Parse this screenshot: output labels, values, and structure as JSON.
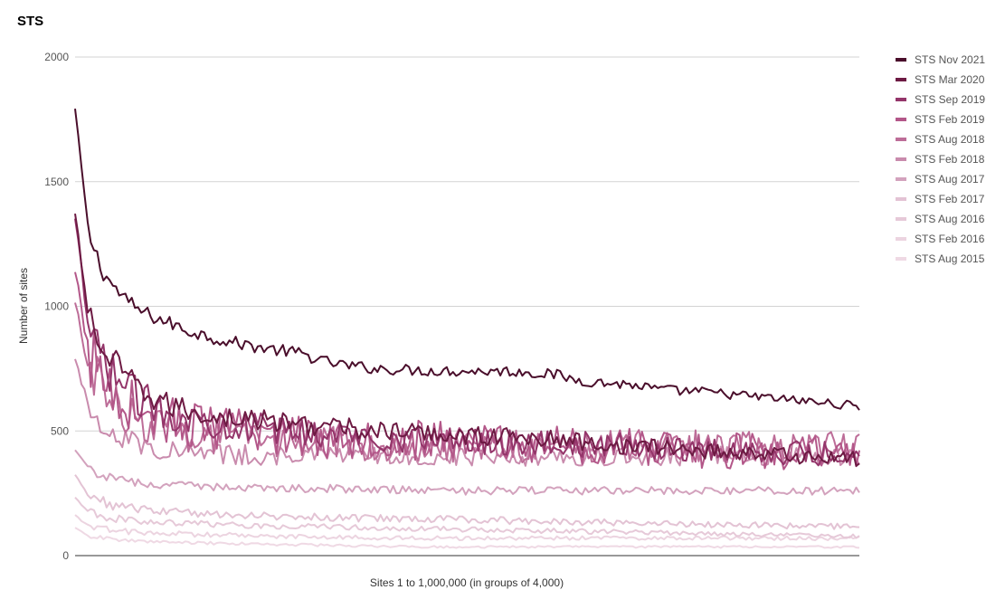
{
  "chart_data": {
    "type": "line",
    "title": "STS",
    "xlabel": "Sites 1 to 1,000,000 (in groups of 4,000)",
    "ylabel": "Number of sites",
    "ylim": [
      0,
      2000
    ],
    "yticks": [
      0,
      500,
      1000,
      1500,
      2000
    ],
    "x_points": 250,
    "legend_position": "right",
    "series": [
      {
        "name": "STS Nov 2021",
        "color": "#4a0e2b",
        "values": [
          1790,
          1290,
          1140,
          1065,
          1010,
          975,
          950,
          930,
          905,
          890,
          875,
          860,
          850,
          840,
          830,
          822,
          815,
          800,
          780,
          770,
          760,
          755,
          750,
          748,
          745,
          743,
          742,
          741,
          740,
          740,
          740,
          740,
          738,
          735,
          730,
          725,
          710,
          700,
          695,
          690,
          688,
          680,
          670,
          665,
          660,
          660,
          655,
          650,
          645,
          640,
          635,
          630,
          625,
          620,
          615,
          610,
          605,
          600
        ]
      },
      {
        "name": "STS Mar 2020",
        "color": "#6d1a43",
        "values": [
          1365,
          950,
          820,
          760,
          700,
          650,
          620,
          600,
          585,
          570,
          560,
          555,
          550,
          545,
          540,
          535,
          530,
          525,
          520,
          515,
          510,
          505,
          500,
          497,
          495,
          493,
          490,
          488,
          485,
          482,
          480,
          478,
          475,
          472,
          470,
          465,
          460,
          455,
          450,
          445,
          440,
          437,
          435,
          432,
          430,
          425,
          420,
          418,
          415,
          412,
          410,
          405,
          400,
          398,
          395,
          392,
          390,
          385
        ]
      },
      {
        "name": "STS Sep 2019",
        "color": "#94356a",
        "values": [
          1340,
          900,
          780,
          720,
          660,
          620,
          590,
          570,
          555,
          545,
          535,
          528,
          520,
          514,
          508,
          502,
          498,
          494,
          490,
          486,
          482,
          478,
          475,
          472,
          470,
          468,
          466,
          464,
          462,
          460,
          458,
          456,
          454,
          452,
          450,
          448,
          446,
          444,
          442,
          440,
          438,
          436,
          434,
          432,
          430,
          428,
          426,
          424,
          422,
          420,
          418,
          416,
          414,
          412,
          410,
          408,
          406,
          404
        ]
      },
      {
        "name": "STS Feb 2019",
        "color": "#b35789",
        "values": [
          1120,
          820,
          720,
          660,
          610,
          580,
          555,
          540,
          528,
          518,
          510,
          504,
          498,
          494,
          490,
          487,
          484,
          481,
          478,
          476,
          474,
          472,
          470,
          468,
          466,
          464,
          462,
          460,
          458,
          456,
          454,
          452,
          450,
          448,
          446,
          444,
          442,
          440,
          438,
          436,
          434,
          432,
          430,
          428,
          426,
          424,
          422,
          420,
          418,
          416,
          414,
          412,
          410,
          408,
          406,
          404,
          402,
          400
        ]
      },
      {
        "name": "STS Aug 2018",
        "color": "#bd6d98",
        "values": [
          1000,
          760,
          660,
          600,
          560,
          535,
          515,
          500,
          490,
          483,
          477,
          472,
          468,
          465,
          462,
          460,
          458,
          456,
          454,
          452,
          450,
          448,
          446,
          445,
          444,
          443,
          442,
          441,
          440,
          440,
          440,
          440,
          440,
          440,
          440,
          440,
          440,
          440,
          440,
          440,
          440,
          440,
          440,
          440,
          440,
          440,
          440,
          440,
          440,
          440,
          440,
          440,
          440,
          440,
          440,
          440,
          440,
          440
        ]
      },
      {
        "name": "STS Feb 2018",
        "color": "#c98bad",
        "values": [
          780,
          600,
          530,
          490,
          460,
          445,
          432,
          425,
          418,
          414,
          410,
          407,
          405,
          403,
          402,
          401,
          400,
          400,
          400,
          400,
          400,
          400,
          400,
          400,
          400,
          400,
          400,
          400,
          400,
          400,
          400,
          400,
          400,
          400,
          400,
          400,
          400,
          400,
          400,
          400,
          400,
          400,
          400,
          400,
          400,
          400,
          400,
          400,
          400,
          400,
          400,
          400,
          400,
          400,
          400,
          400,
          400,
          400
        ]
      },
      {
        "name": "STS Aug 2017",
        "color": "#d3a2bd",
        "values": [
          420,
          350,
          320,
          305,
          295,
          290,
          285,
          282,
          280,
          278,
          277,
          276,
          275,
          274,
          273,
          272,
          271,
          270,
          269,
          268,
          267,
          266,
          265,
          264,
          263,
          262,
          261,
          260,
          260,
          260,
          260,
          260,
          260,
          260,
          260,
          260,
          260,
          260,
          260,
          260,
          260,
          260,
          260,
          260,
          260,
          260,
          260,
          260,
          260,
          260,
          260,
          260,
          260,
          260,
          260,
          260,
          260,
          260
        ]
      },
      {
        "name": "STS Feb 2017",
        "color": "#e3c3d4",
        "values": [
          320,
          240,
          215,
          200,
          192,
          185,
          180,
          176,
          173,
          170,
          168,
          166,
          164,
          162,
          160,
          158,
          156,
          155,
          154,
          153,
          152,
          151,
          150,
          149,
          148,
          147,
          146,
          145,
          144,
          143,
          142,
          141,
          140,
          139,
          138,
          137,
          136,
          135,
          134,
          133,
          132,
          131,
          130,
          129,
          128,
          127,
          126,
          125,
          124,
          123,
          122,
          121,
          120,
          119,
          118,
          117,
          116,
          115
        ]
      },
      {
        "name": "STS Aug 2016",
        "color": "#e6c9d8",
        "values": [
          230,
          175,
          158,
          148,
          142,
          138,
          135,
          132,
          130,
          128,
          126,
          124,
          122,
          121,
          120,
          119,
          118,
          117,
          116,
          115,
          114,
          113,
          112,
          111,
          110,
          109,
          108,
          107,
          106,
          105,
          104,
          103,
          102,
          101,
          100,
          99,
          98,
          97,
          96,
          95,
          94,
          93,
          92,
          91,
          90,
          89,
          88,
          87,
          86,
          85,
          84,
          83,
          82,
          81,
          80,
          79,
          78,
          77
        ]
      },
      {
        "name": "STS Feb 2016",
        "color": "#ecd4e0",
        "values": [
          160,
          120,
          108,
          100,
          95,
          92,
          90,
          88,
          86,
          84,
          83,
          82,
          81,
          80,
          79,
          78,
          77,
          76,
          75,
          74,
          73,
          72,
          71,
          70,
          70,
          70,
          70,
          70,
          70,
          70,
          70,
          70,
          70,
          70,
          70,
          70,
          70,
          70,
          70,
          70,
          70,
          70,
          70,
          70,
          70,
          70,
          70,
          70,
          70,
          70,
          70,
          70,
          70,
          70,
          70,
          70,
          70,
          70
        ]
      },
      {
        "name": "STS Aug 2015",
        "color": "#efd9e4",
        "values": [
          110,
          80,
          70,
          64,
          60,
          57,
          55,
          53,
          52,
          51,
          50,
          49,
          48,
          47,
          46,
          45,
          44,
          43,
          42,
          41,
          40,
          39,
          38,
          37,
          36,
          35,
          35,
          35,
          35,
          35,
          35,
          35,
          35,
          35,
          35,
          35,
          35,
          35,
          35,
          35,
          35,
          35,
          35,
          35,
          35,
          35,
          35,
          35,
          35,
          35,
          35,
          35,
          35,
          35,
          35,
          35,
          35,
          35
        ]
      }
    ]
  }
}
